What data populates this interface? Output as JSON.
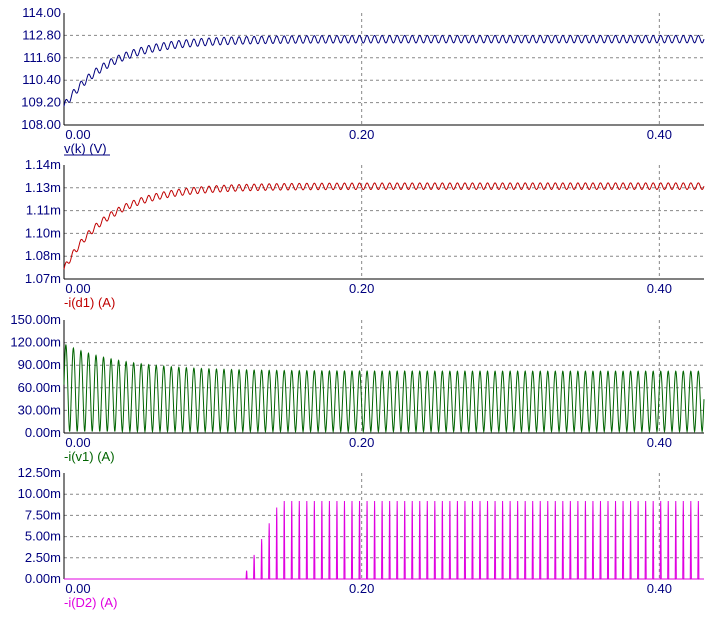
{
  "chart_data": [
    {
      "type": "line",
      "series": [
        {
          "name": "v(k) (V)",
          "color": "#00007f"
        }
      ],
      "ylabel": "v(k) (V)",
      "ylim": [
        108.0,
        114.0
      ],
      "yticks": [
        "108.00",
        "109.20",
        "110.40",
        "111.60",
        "112.80",
        "114.00"
      ],
      "xlim": [
        0.0,
        0.43
      ],
      "xticks": [
        "0.00",
        "0.20",
        "0.40"
      ],
      "waveform": {
        "start": 109.0,
        "steady": 112.6,
        "ripple": 0.4,
        "tau": 0.03
      },
      "grid": true
    },
    {
      "type": "line",
      "series": [
        {
          "name": "-i(d1) (A)",
          "color": "#c00000"
        }
      ],
      "ylabel": "-i(d1) (A)",
      "ylim": [
        1.07,
        1.14
      ],
      "yticks": [
        "1.07m",
        "1.08m",
        "1.10m",
        "1.11m",
        "1.13m",
        "1.14m"
      ],
      "xlim": [
        0.0,
        0.43
      ],
      "xticks": [
        "0.00",
        "0.20",
        "0.40"
      ],
      "waveform": {
        "start": 1.076,
        "steady": 1.127,
        "ripple": 0.004,
        "tau": 0.03
      },
      "grid": true
    },
    {
      "type": "line",
      "series": [
        {
          "name": "-i(v1) (A)",
          "color": "#006400"
        }
      ],
      "ylabel": "-i(v1) (A)",
      "ylim": [
        0,
        150
      ],
      "yticks": [
        "0.00m",
        "30.00m",
        "60.00m",
        "90.00m",
        "120.00m",
        "150.00m"
      ],
      "xlim": [
        0.0,
        0.43
      ],
      "xticks": [
        "0.00",
        "0.20",
        "0.40"
      ],
      "waveform": {
        "min": 2,
        "peak_start": 118,
        "peak_steady": 82,
        "tau": 0.04
      },
      "grid": true
    },
    {
      "type": "line",
      "series": [
        {
          "name": "-i(D2) (A)",
          "color": "#e000e0"
        }
      ],
      "ylabel": "-i(D2) (A)",
      "ylim": [
        0,
        12.5
      ],
      "yticks": [
        "0.00m",
        "2.50m",
        "5.00m",
        "7.50m",
        "10.00m",
        "12.50m"
      ],
      "xlim": [
        0.0,
        0.43
      ],
      "xticks": [
        "0.00",
        "0.20",
        "0.40"
      ],
      "waveform": {
        "onset": 0.12,
        "peak_steady": 9.2
      },
      "grid": true
    }
  ]
}
